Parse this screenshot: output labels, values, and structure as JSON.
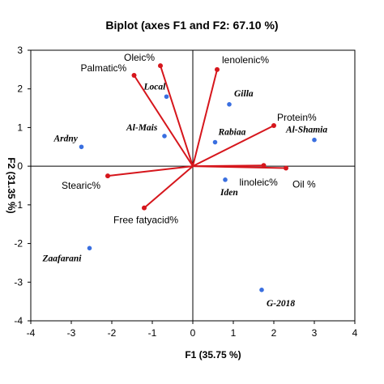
{
  "chart_data": {
    "type": "scatter",
    "title": "Biplot (axes F1 and F2: 67.10 %)",
    "xlabel": "F1 (35.75 %)",
    "ylabel": "F2 (31.35 %)",
    "xlim": [
      -4,
      4
    ],
    "ylim": [
      -4,
      3
    ],
    "xticks": [
      "-4",
      "-3",
      "-2",
      "-1",
      "0",
      "1",
      "2",
      "3",
      "4"
    ],
    "yticks": [
      "3",
      "2",
      "1",
      "0",
      "-1",
      "-2",
      "-3",
      "-4"
    ],
    "grid": false,
    "colors": {
      "variables": "#d6161c",
      "observations": "#3a6fe0",
      "frame": "#000000",
      "zero_lines": "#000000"
    },
    "variables": [
      {
        "name": "Oleic%",
        "x": -0.8,
        "y": 2.6
      },
      {
        "name": "Palmatic%",
        "x": -1.45,
        "y": 2.35
      },
      {
        "name": "lenolenic%",
        "x": 0.6,
        "y": 2.5
      },
      {
        "name": "Protein%",
        "x": 2.0,
        "y": 1.05
      },
      {
        "name": "linoleic%",
        "x": 1.75,
        "y": 0.02
      },
      {
        "name": "Oil %",
        "x": 2.3,
        "y": -0.05
      },
      {
        "name": "Stearic%",
        "x": -2.1,
        "y": -0.25
      },
      {
        "name": "Free fatyacid%",
        "x": -1.2,
        "y": -1.08
      }
    ],
    "observations": [
      {
        "name": "Ardny",
        "x": -2.75,
        "y": 0.5
      },
      {
        "name": "Local",
        "x": -0.65,
        "y": 1.8
      },
      {
        "name": "Al-Mais",
        "x": -0.7,
        "y": 0.78
      },
      {
        "name": "Gilla",
        "x": 0.9,
        "y": 1.6
      },
      {
        "name": "Rabiaa",
        "x": 0.55,
        "y": 0.62
      },
      {
        "name": "Al-Shamia",
        "x": 3.0,
        "y": 0.68
      },
      {
        "name": "Iden",
        "x": 0.8,
        "y": -0.35
      },
      {
        "name": "Zaafarani",
        "x": -2.55,
        "y": -2.12
      },
      {
        "name": "G-2018",
        "x": 1.7,
        "y": -3.2
      }
    ]
  }
}
